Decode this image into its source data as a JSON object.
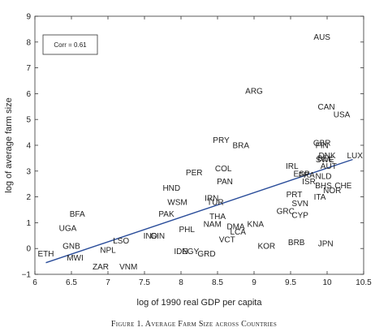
{
  "caption": "Figure 1. Average Farm Size across Countries",
  "chart_data": {
    "type": "scatter",
    "xlabel": "log of 1990 real GDP per capita",
    "ylabel": "log of average farm size",
    "annotation": "Corr = 0.61",
    "xlim": [
      6,
      10.5
    ],
    "ylim": [
      -1,
      9
    ],
    "xticks": [
      "6",
      "6.5",
      "7",
      "7.5",
      "8",
      "8.5",
      "9",
      "9.5",
      "10",
      "10.5"
    ],
    "yticks": [
      "−1",
      "0",
      "1",
      "2",
      "3",
      "4",
      "5",
      "6",
      "7",
      "8",
      "9"
    ],
    "grid": false,
    "points": [
      {
        "label": "AUS",
        "x": 9.93,
        "y": 8.2
      },
      {
        "label": "ARG",
        "x": 9.0,
        "y": 6.1
      },
      {
        "label": "CAN",
        "x": 9.99,
        "y": 5.5
      },
      {
        "label": "USA",
        "x": 10.2,
        "y": 5.2
      },
      {
        "label": "PRY",
        "x": 8.55,
        "y": 4.2
      },
      {
        "label": "BRA",
        "x": 8.82,
        "y": 4.0
      },
      {
        "label": "GBR",
        "x": 9.93,
        "y": 4.1
      },
      {
        "label": "FIN",
        "x": 9.93,
        "y": 4.0
      },
      {
        "label": "LUX",
        "x": 10.38,
        "y": 3.6
      },
      {
        "label": "DNK",
        "x": 10.0,
        "y": 3.6
      },
      {
        "label": "BEL",
        "x": 9.97,
        "y": 3.5
      },
      {
        "label": "SWE",
        "x": 9.97,
        "y": 3.45
      },
      {
        "label": "AUT",
        "x": 10.02,
        "y": 3.2
      },
      {
        "label": "COL",
        "x": 8.58,
        "y": 3.1
      },
      {
        "label": "PER",
        "x": 8.18,
        "y": 2.95
      },
      {
        "label": "IRL",
        "x": 9.52,
        "y": 3.2
      },
      {
        "label": "ESP",
        "x": 9.65,
        "y": 2.9
      },
      {
        "label": "FRA",
        "x": 9.72,
        "y": 2.85
      },
      {
        "label": "NLD",
        "x": 9.95,
        "y": 2.8
      },
      {
        "label": "ISR",
        "x": 9.75,
        "y": 2.6
      },
      {
        "label": "BHS",
        "x": 9.95,
        "y": 2.45
      },
      {
        "label": "CHE",
        "x": 10.22,
        "y": 2.45
      },
      {
        "label": "NOR",
        "x": 10.07,
        "y": 2.25
      },
      {
        "label": "PAN",
        "x": 8.6,
        "y": 2.6
      },
      {
        "label": "HND",
        "x": 7.87,
        "y": 2.35
      },
      {
        "label": "PRT",
        "x": 9.55,
        "y": 2.1
      },
      {
        "label": "ITA",
        "x": 9.9,
        "y": 2.0
      },
      {
        "label": "IRN",
        "x": 8.42,
        "y": 1.95
      },
      {
        "label": "WSM",
        "x": 7.95,
        "y": 1.8
      },
      {
        "label": "TUR",
        "x": 8.47,
        "y": 1.8
      },
      {
        "label": "SVN",
        "x": 9.63,
        "y": 1.75
      },
      {
        "label": "GRC",
        "x": 9.43,
        "y": 1.45
      },
      {
        "label": "CYP",
        "x": 9.63,
        "y": 1.3
      },
      {
        "label": "BFA",
        "x": 6.58,
        "y": 1.35
      },
      {
        "label": "PAK",
        "x": 7.8,
        "y": 1.35
      },
      {
        "label": "THA",
        "x": 8.5,
        "y": 1.25
      },
      {
        "label": "NAM",
        "x": 8.43,
        "y": 0.95
      },
      {
        "label": "KNA",
        "x": 9.02,
        "y": 0.95
      },
      {
        "label": "UGA",
        "x": 6.45,
        "y": 0.8
      },
      {
        "label": "PHL",
        "x": 8.08,
        "y": 0.75
      },
      {
        "label": "DMA",
        "x": 8.75,
        "y": 0.85
      },
      {
        "label": "LCA",
        "x": 8.78,
        "y": 0.65
      },
      {
        "label": "IND",
        "x": 7.58,
        "y": 0.5
      },
      {
        "label": "GIN",
        "x": 7.68,
        "y": 0.5
      },
      {
        "label": "LSO",
        "x": 7.18,
        "y": 0.3
      },
      {
        "label": "VCT",
        "x": 8.63,
        "y": 0.35
      },
      {
        "label": "GNB",
        "x": 6.5,
        "y": 0.1
      },
      {
        "label": "KOR",
        "x": 9.17,
        "y": 0.1
      },
      {
        "label": "BRB",
        "x": 9.58,
        "y": 0.25
      },
      {
        "label": "JPN",
        "x": 9.98,
        "y": 0.2
      },
      {
        "label": "NPL",
        "x": 7.0,
        "y": -0.05
      },
      {
        "label": "IDN",
        "x": 8.0,
        "y": -0.1
      },
      {
        "label": "EGY",
        "x": 8.13,
        "y": -0.1
      },
      {
        "label": "GRD",
        "x": 8.35,
        "y": -0.2
      },
      {
        "label": "ETH",
        "x": 6.15,
        "y": -0.2
      },
      {
        "label": "MWI",
        "x": 6.55,
        "y": -0.35
      },
      {
        "label": "ZAR",
        "x": 6.9,
        "y": -0.7
      },
      {
        "label": "VNM",
        "x": 7.28,
        "y": -0.7
      }
    ],
    "fit_line": {
      "x": [
        6.15,
        10.35
      ],
      "y": [
        -0.55,
        3.45
      ]
    }
  }
}
